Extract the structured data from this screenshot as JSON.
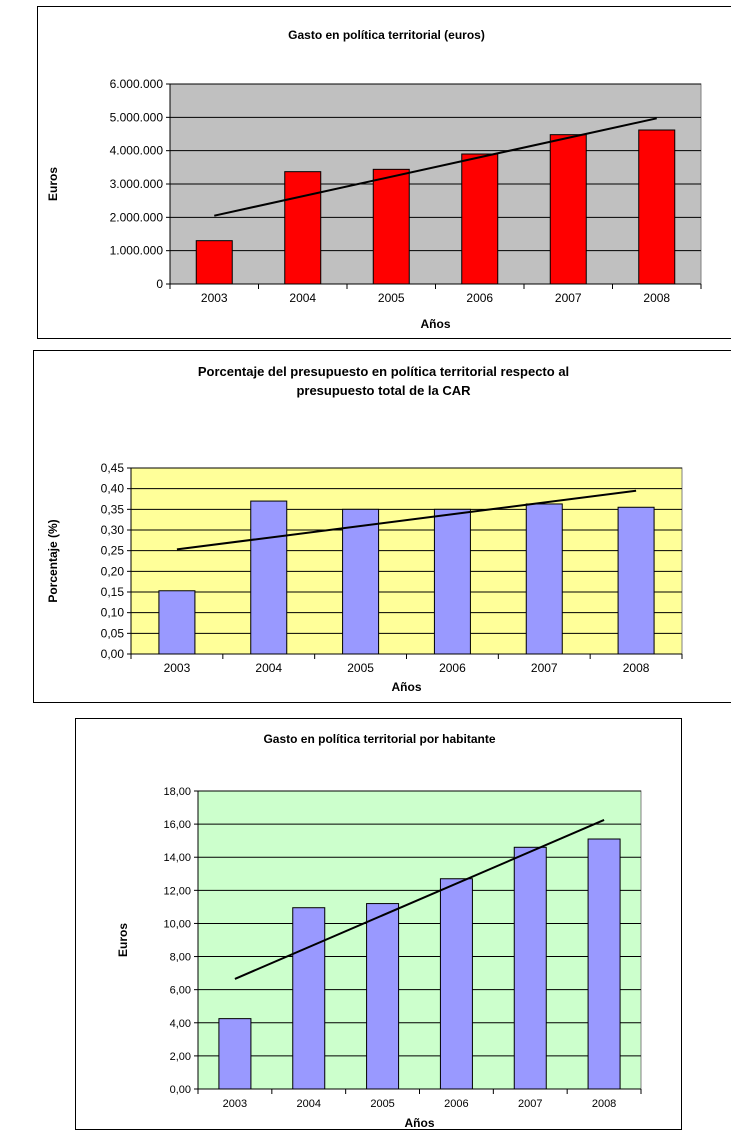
{
  "chart_data": [
    {
      "type": "bar",
      "title": "Gasto en política territorial (euros)",
      "xlabel": "Años",
      "ylabel": "Euros",
      "categories": [
        "2003",
        "2004",
        "2005",
        "2006",
        "2007",
        "2008"
      ],
      "values": [
        1300000,
        3370000,
        3440000,
        3900000,
        4480000,
        4620000
      ],
      "trendline": [
        2050000,
        4970000
      ],
      "ylim": [
        0,
        6000000
      ],
      "ytick_labels": [
        "0",
        "1.000.000",
        "2.000.000",
        "3.000.000",
        "4.000.000",
        "5.000.000",
        "6.000.000"
      ],
      "grid": true,
      "legend": "none",
      "colors": {
        "plot_background": "#c0c0c0",
        "bar": "#ff0000",
        "trendline": "#000000"
      }
    },
    {
      "type": "bar",
      "title": [
        "Porcentaje del presupuesto en política territorial respecto al",
        "presupuesto total de la CAR"
      ],
      "xlabel": "Años",
      "ylabel": "Porcentaje (%)",
      "categories": [
        "2003",
        "2004",
        "2005",
        "2006",
        "2007",
        "2008"
      ],
      "values": [
        0.153,
        0.37,
        0.35,
        0.35,
        0.363,
        0.355
      ],
      "trendline": [
        0.253,
        0.395
      ],
      "ylim": [
        0,
        0.45
      ],
      "ytick_labels": [
        "0,00",
        "0,05",
        "0,10",
        "0,15",
        "0,20",
        "0,25",
        "0,30",
        "0,35",
        "0,40",
        "0,45"
      ],
      "grid": true,
      "legend": "none",
      "colors": {
        "plot_background": "#ffff99",
        "bar": "#9999ff",
        "trendline": "#000000"
      }
    },
    {
      "type": "bar",
      "title": "Gasto en política territorial por habitante",
      "xlabel": "Años",
      "ylabel": "Euros",
      "categories": [
        "2003",
        "2004",
        "2005",
        "2006",
        "2007",
        "2008"
      ],
      "values": [
        4.25,
        10.95,
        11.2,
        12.7,
        14.6,
        15.1
      ],
      "trendline": [
        6.65,
        16.25
      ],
      "ylim": [
        0,
        18
      ],
      "ytick_labels": [
        "0,00",
        "2,00",
        "4,00",
        "6,00",
        "8,00",
        "10,00",
        "12,00",
        "14,00",
        "16,00",
        "18,00"
      ],
      "grid": true,
      "legend": "none",
      "colors": {
        "plot_background": "#ccffcc",
        "bar": "#9999ff",
        "trendline": "#000000"
      }
    }
  ]
}
